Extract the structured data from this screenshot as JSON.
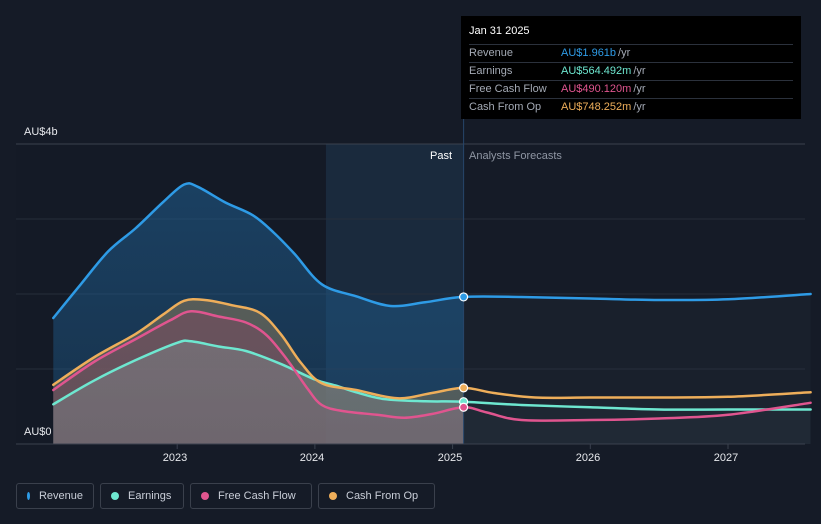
{
  "tooltip": {
    "date": "Jan 31 2025",
    "rows": [
      {
        "label": "Revenue",
        "value": "AU$1.961b",
        "unit": "/yr",
        "color": "#2e9be6"
      },
      {
        "label": "Earnings",
        "value": "AU$564.492m",
        "unit": "/yr",
        "color": "#6ee7d0"
      },
      {
        "label": "Free Cash Flow",
        "value": "AU$490.120m",
        "unit": "/yr",
        "color": "#e0558f"
      },
      {
        "label": "Cash From Op",
        "value": "AU$748.252m",
        "unit": "/yr",
        "color": "#eeae5a"
      }
    ]
  },
  "labels": {
    "past": "Past",
    "forecast": "Analysts Forecasts"
  },
  "legend": [
    {
      "label": "Revenue",
      "color": "#2e9be6"
    },
    {
      "label": "Earnings",
      "color": "#6ee7d0"
    },
    {
      "label": "Free Cash Flow",
      "color": "#e0558f"
    },
    {
      "label": "Cash From Op",
      "color": "#eeae5a"
    }
  ],
  "chart_data": {
    "type": "line",
    "ylim": [
      0,
      4
    ],
    "y_unit": "AU$ billions",
    "y_ticks": [
      "AU$0",
      "AU$4b"
    ],
    "x_ticks": [
      "2023",
      "2024",
      "2025",
      "2026",
      "2027"
    ],
    "past_end": 2025.08,
    "shaded_start": 2024.08,
    "grid": true,
    "legend_position": "bottom",
    "series": [
      {
        "name": "Revenue",
        "color": "#2e9be6",
        "area": true,
        "x": [
          2022.1,
          2022.3,
          2022.5,
          2022.7,
          2022.9,
          2023.05,
          2023.15,
          2023.35,
          2023.55,
          2023.7,
          2023.85,
          2024.05,
          2024.3,
          2024.55,
          2024.8,
          2025.08,
          2025.5,
          2026.0,
          2026.5,
          2027.0,
          2027.6
        ],
        "y": [
          1.68,
          2.13,
          2.57,
          2.88,
          3.23,
          3.46,
          3.43,
          3.22,
          3.05,
          2.82,
          2.54,
          2.13,
          1.97,
          1.84,
          1.89,
          1.961,
          1.96,
          1.94,
          1.92,
          1.93,
          2.0
        ]
      },
      {
        "name": "Earnings",
        "color": "#6ee7d0",
        "area": true,
        "x": [
          2022.1,
          2022.4,
          2022.7,
          2023.0,
          2023.1,
          2023.3,
          2023.5,
          2023.75,
          2024.0,
          2024.15,
          2024.3,
          2024.5,
          2024.8,
          2025.08,
          2025.5,
          2026.0,
          2026.5,
          2027.0,
          2027.6
        ],
        "y": [
          0.53,
          0.85,
          1.12,
          1.35,
          1.37,
          1.3,
          1.24,
          1.07,
          0.86,
          0.78,
          0.69,
          0.6,
          0.57,
          0.564,
          0.52,
          0.49,
          0.46,
          0.46,
          0.46
        ]
      },
      {
        "name": "Free Cash Flow",
        "color": "#e0558f",
        "area": true,
        "x": [
          2022.1,
          2022.4,
          2022.7,
          2022.95,
          2023.1,
          2023.3,
          2023.5,
          2023.65,
          2023.8,
          2023.95,
          2024.05,
          2024.2,
          2024.45,
          2024.65,
          2024.85,
          2025.08,
          2025.25,
          2025.5,
          2026.0,
          2026.5,
          2027.0,
          2027.6
        ],
        "y": [
          0.72,
          1.1,
          1.4,
          1.65,
          1.77,
          1.7,
          1.62,
          1.45,
          1.12,
          0.73,
          0.52,
          0.44,
          0.39,
          0.35,
          0.4,
          0.49,
          0.42,
          0.32,
          0.32,
          0.34,
          0.39,
          0.55
        ]
      },
      {
        "name": "Cash From Op",
        "color": "#eeae5a",
        "area": true,
        "x": [
          2022.1,
          2022.4,
          2022.7,
          2022.9,
          2023.05,
          2023.2,
          2023.4,
          2023.6,
          2023.75,
          2023.9,
          2024.05,
          2024.3,
          2024.6,
          2024.85,
          2025.08,
          2025.3,
          2025.6,
          2026.0,
          2026.5,
          2027.0,
          2027.6
        ],
        "y": [
          0.79,
          1.16,
          1.47,
          1.73,
          1.91,
          1.92,
          1.85,
          1.75,
          1.47,
          1.08,
          0.81,
          0.72,
          0.61,
          0.68,
          0.748,
          0.68,
          0.62,
          0.62,
          0.62,
          0.63,
          0.69
        ]
      }
    ]
  }
}
